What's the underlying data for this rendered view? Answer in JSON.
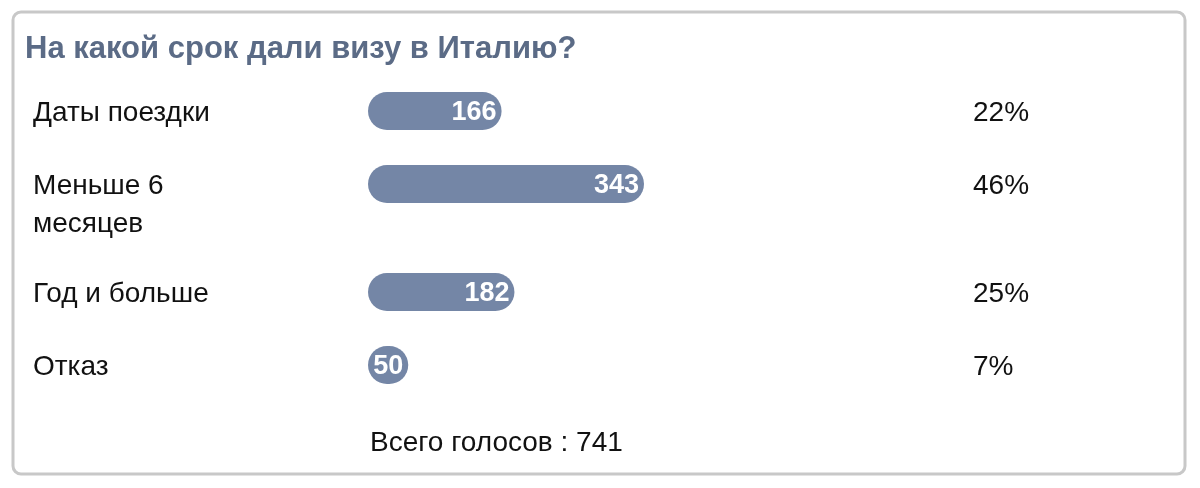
{
  "chart_data": {
    "type": "bar",
    "orientation": "horizontal",
    "title": "На какой срок дали визу в Италию?",
    "categories": [
      "Даты поездки",
      "Меньше 6 месяцев",
      "Год и больше",
      "Отказ"
    ],
    "values": [
      166,
      343,
      182,
      50
    ],
    "color": "#7486a6",
    "data_labels": true,
    "annotations": [
      "22%",
      "46%",
      "25%",
      "7%",
      "Всего голосов : 741"
    ]
  }
}
